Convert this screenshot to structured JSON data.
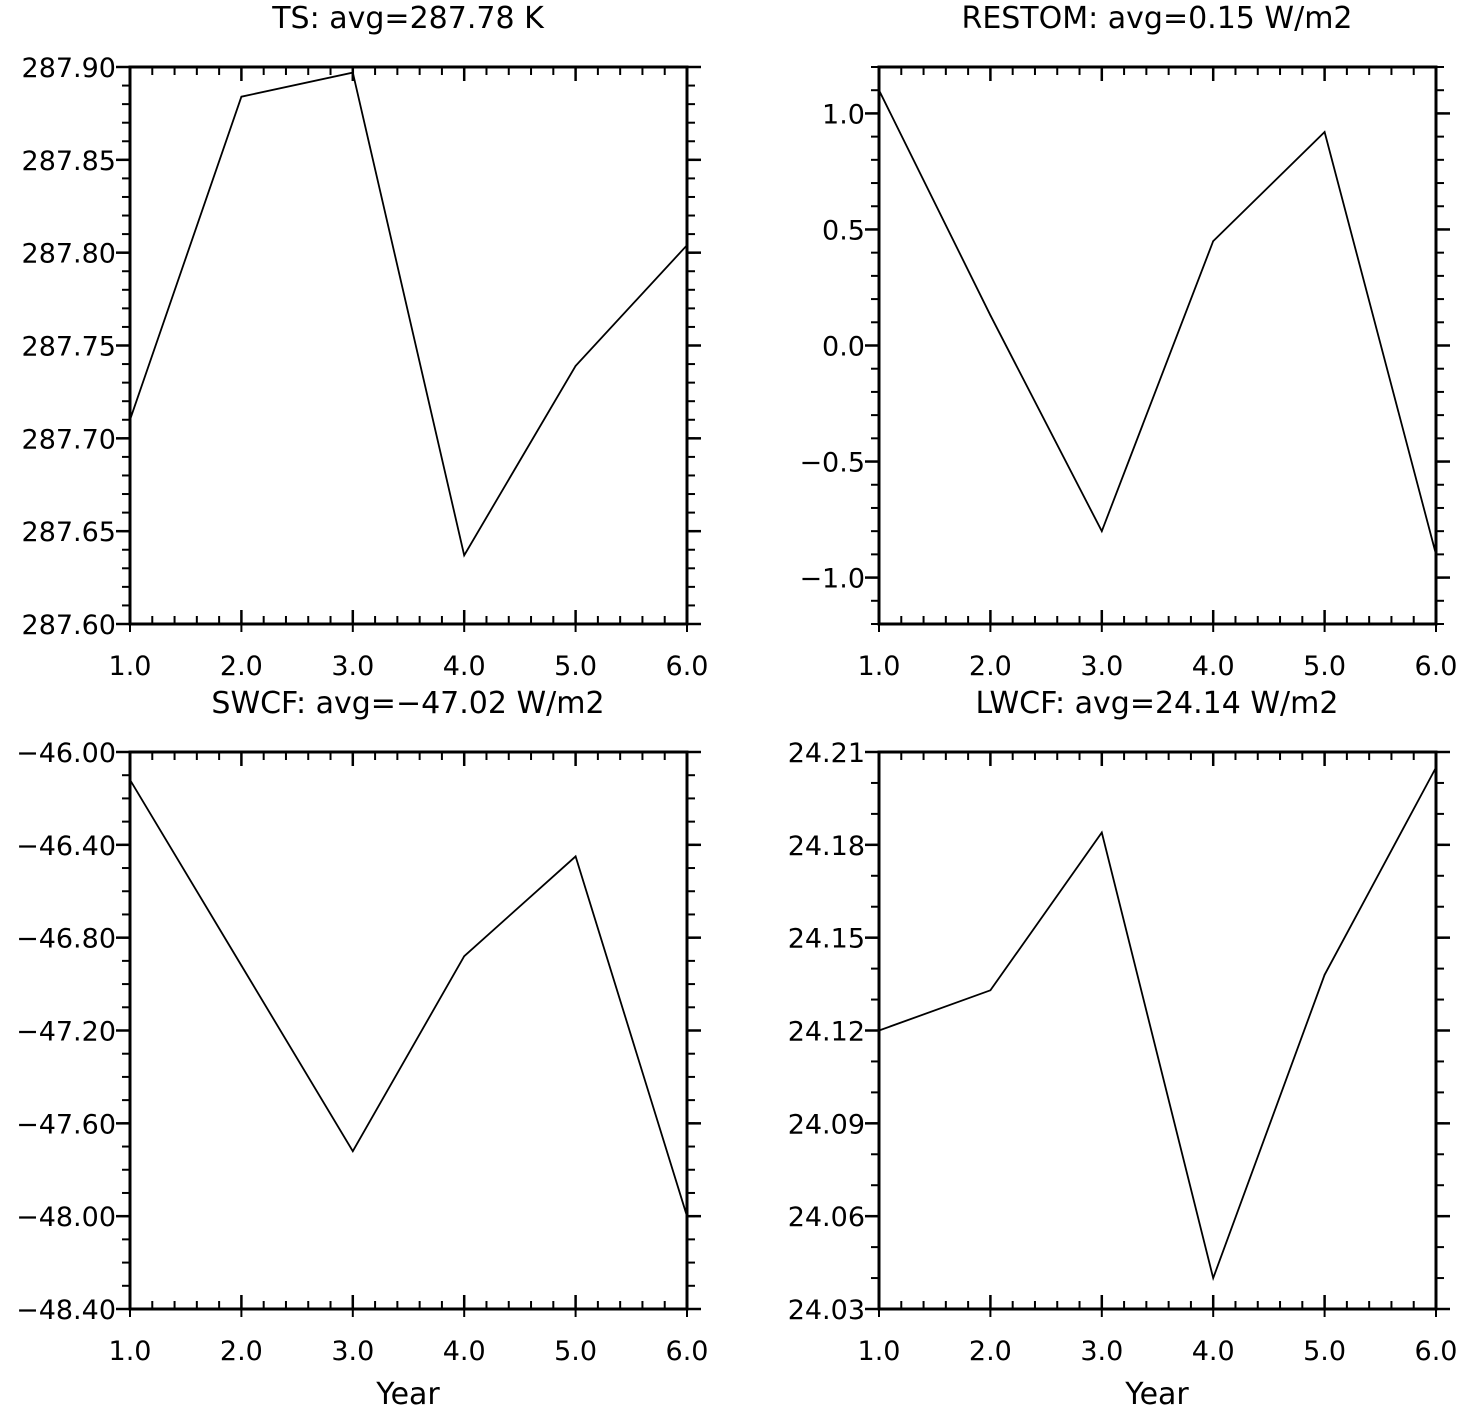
{
  "figure": {
    "line_color": "#000000",
    "background": "#ffffff"
  },
  "chart_data": [
    {
      "id": "ts",
      "type": "line",
      "title": "TS: avg=287.78 K",
      "xlabel": "",
      "ylabel": "",
      "x": [
        1,
        2,
        3,
        4,
        5,
        6
      ],
      "values": [
        287.71,
        287.884,
        287.897,
        287.637,
        287.739,
        287.804
      ],
      "xlim": [
        1,
        6
      ],
      "ylim": [
        287.6,
        287.9
      ],
      "xticks": [
        "1.0",
        "2.0",
        "3.0",
        "4.0",
        "5.0",
        "6.0"
      ],
      "yticks": [
        {
          "value": 287.9,
          "label": "287.90"
        },
        {
          "value": 287.85,
          "label": "287.85"
        },
        {
          "value": 287.8,
          "label": "287.80"
        },
        {
          "value": 287.75,
          "label": "287.75"
        },
        {
          "value": 287.7,
          "label": "287.70"
        },
        {
          "value": 287.65,
          "label": "287.65"
        },
        {
          "value": 287.6,
          "label": "287.60"
        }
      ],
      "y_minor_per_major": 5,
      "grid": false
    },
    {
      "id": "restom",
      "type": "line",
      "title": "RESTOM: avg=0.15 W/m2",
      "xlabel": "",
      "ylabel": "",
      "x": [
        1,
        2,
        3,
        4,
        5,
        6
      ],
      "values": [
        1.1,
        0.13,
        -0.8,
        0.45,
        0.92,
        -0.9
      ],
      "xlim": [
        1,
        6
      ],
      "ylim": [
        -1.2,
        1.2
      ],
      "xticks": [
        "1.0",
        "2.0",
        "3.0",
        "4.0",
        "5.0",
        "6.0"
      ],
      "yticks": [
        {
          "value": 1.0,
          "label": "1.0"
        },
        {
          "value": 0.5,
          "label": "0.5"
        },
        {
          "value": 0.0,
          "label": "0.0"
        },
        {
          "value": -0.5,
          "label": "−0.5"
        },
        {
          "value": -1.0,
          "label": "−1.0"
        }
      ],
      "y_minor_per_major": 5,
      "grid": false
    },
    {
      "id": "swcf",
      "type": "line",
      "title": "SWCF: avg=−47.02 W/m2",
      "xlabel": "Year",
      "ylabel": "",
      "x": [
        1,
        2,
        3,
        4,
        5,
        6
      ],
      "values": [
        -46.12,
        -46.92,
        -47.72,
        -46.88,
        -46.45,
        -48.0
      ],
      "xlim": [
        1,
        6
      ],
      "ylim": [
        -48.4,
        -46.0
      ],
      "xticks": [
        "1.0",
        "2.0",
        "3.0",
        "4.0",
        "5.0",
        "6.0"
      ],
      "yticks": [
        {
          "value": -46.0,
          "label": "−46.00"
        },
        {
          "value": -46.4,
          "label": "−46.40"
        },
        {
          "value": -46.8,
          "label": "−46.80"
        },
        {
          "value": -47.2,
          "label": "−47.20"
        },
        {
          "value": -47.6,
          "label": "−47.60"
        },
        {
          "value": -48.0,
          "label": "−48.00"
        },
        {
          "value": -48.4,
          "label": "−48.40"
        }
      ],
      "y_minor_per_major": 4,
      "grid": false
    },
    {
      "id": "lwcf",
      "type": "line",
      "title": "LWCF: avg=24.14 W/m2",
      "xlabel": "Year",
      "ylabel": "",
      "x": [
        1,
        2,
        3,
        4,
        5,
        6
      ],
      "values": [
        24.12,
        24.133,
        24.184,
        24.04,
        24.138,
        24.205
      ],
      "xlim": [
        1,
        6
      ],
      "ylim": [
        24.03,
        24.21
      ],
      "xticks": [
        "1.0",
        "2.0",
        "3.0",
        "4.0",
        "5.0",
        "6.0"
      ],
      "yticks": [
        {
          "value": 24.21,
          "label": "24.21"
        },
        {
          "value": 24.18,
          "label": "24.18"
        },
        {
          "value": 24.15,
          "label": "24.15"
        },
        {
          "value": 24.12,
          "label": "24.12"
        },
        {
          "value": 24.09,
          "label": "24.09"
        },
        {
          "value": 24.06,
          "label": "24.06"
        },
        {
          "value": 24.03,
          "label": "24.03"
        }
      ],
      "y_minor_per_major": 3,
      "grid": false
    }
  ]
}
